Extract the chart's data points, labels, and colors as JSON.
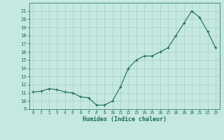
{
  "x": [
    0,
    1,
    2,
    3,
    4,
    5,
    6,
    7,
    8,
    9,
    10,
    11,
    12,
    13,
    14,
    15,
    16,
    17,
    18,
    19,
    20,
    21,
    22,
    23
  ],
  "y": [
    11.1,
    11.2,
    11.5,
    11.4,
    11.1,
    11.0,
    10.5,
    10.4,
    9.5,
    9.5,
    10.0,
    11.7,
    14.0,
    15.0,
    15.5,
    15.5,
    16.0,
    16.5,
    18.0,
    19.5,
    21.0,
    20.2,
    18.5,
    16.5
  ],
  "xlabel": "Humidex (Indice chaleur)",
  "ylim": [
    9,
    22
  ],
  "yticks": [
    9,
    10,
    11,
    12,
    13,
    14,
    15,
    16,
    17,
    18,
    19,
    20,
    21
  ],
  "xticks": [
    0,
    1,
    2,
    3,
    4,
    5,
    6,
    7,
    8,
    9,
    10,
    11,
    12,
    13,
    14,
    15,
    16,
    17,
    18,
    19,
    20,
    21,
    22,
    23
  ],
  "line_color": "#1a6b5a",
  "marker_color": "#1a6b5a",
  "bg_color": "#c5e8e0",
  "grid_color": "#aacec6"
}
